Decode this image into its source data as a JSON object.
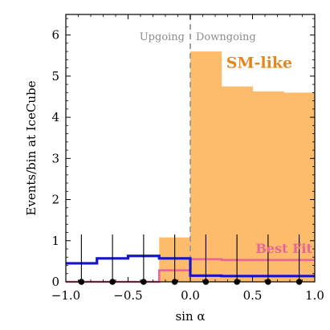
{
  "chart_data": {
    "type": "bar",
    "xlabel": "sin α",
    "ylabel": "Events/bin at IceCube",
    "xlim": [
      -1.0,
      1.0
    ],
    "ylim": [
      0,
      6.5
    ],
    "x_ticks": [
      -1.0,
      -0.5,
      0.0,
      0.5,
      1.0
    ],
    "x_tick_labels": [
      "−1.0",
      "−0.5",
      "0.0",
      "0.5",
      "1.0"
    ],
    "y_ticks": [
      0,
      1,
      2,
      3,
      4,
      5,
      6
    ],
    "y_tick_labels": [
      "0",
      "1",
      "2",
      "3",
      "4",
      "5",
      "6"
    ],
    "bin_edges": [
      -1.0,
      -0.75,
      -0.5,
      -0.25,
      0.0,
      0.25,
      0.5,
      0.75,
      1.0
    ],
    "regions": {
      "left": "Upgoing",
      "right": "Downgoing",
      "divider_x": 0.0
    },
    "series": [
      {
        "name": "SM-like",
        "style": "filled-step",
        "color": "#fdbb6c",
        "label_color": "#e3861f",
        "values": [
          0,
          0,
          0,
          1.08,
          5.6,
          4.75,
          4.63,
          4.6
        ]
      },
      {
        "name": "Best Fit",
        "style": "step-line",
        "color": "#e8649a",
        "values": [
          0,
          0,
          0,
          0.28,
          0.55,
          0.53,
          0.53,
          0.53
        ]
      },
      {
        "style": "step-line",
        "color": "#1515cc",
        "values": [
          0.45,
          0.57,
          0.63,
          0.57,
          0.15,
          0.14,
          0.14,
          0.14
        ]
      }
    ],
    "data_points": {
      "x": [
        -0.875,
        -0.625,
        -0.375,
        -0.125,
        0.125,
        0.375,
        0.625,
        0.875
      ],
      "y": [
        0,
        0,
        0,
        0,
        0,
        0,
        0,
        0
      ],
      "err_up": [
        1.15,
        1.15,
        1.15,
        1.15,
        1.15,
        1.15,
        1.15,
        1.15
      ]
    }
  }
}
